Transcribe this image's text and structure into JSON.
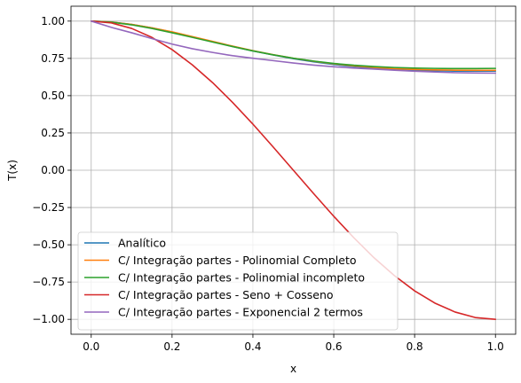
{
  "chart_data": {
    "type": "line",
    "title": "",
    "xlabel": "x",
    "ylabel": "T(x)",
    "xlim": [
      -0.05,
      1.05
    ],
    "ylim": [
      -1.1,
      1.1
    ],
    "grid": true,
    "legend_position": "lower-left",
    "x_ticks": [
      0.0,
      0.2,
      0.4,
      0.6,
      0.8,
      1.0
    ],
    "x_tick_labels": [
      "0.0",
      "0.2",
      "0.4",
      "0.6",
      "0.8",
      "1.0"
    ],
    "y_ticks": [
      1.0,
      0.75,
      0.5,
      0.25,
      0.0,
      -0.25,
      -0.5,
      -0.75,
      -1.0
    ],
    "y_tick_labels": [
      "1.00",
      "0.75",
      "0.50",
      "0.25",
      "0.00",
      "−0.25",
      "−0.50",
      "−0.75",
      "−1.00"
    ],
    "x": [
      0.0,
      0.05,
      0.1,
      0.15,
      0.2,
      0.25,
      0.3,
      0.35,
      0.4,
      0.45,
      0.5,
      0.55,
      0.6,
      0.65,
      0.7,
      0.75,
      0.8,
      0.85,
      0.9,
      0.95,
      1.0
    ],
    "series": [
      {
        "name": "Analítico",
        "color": "#1f77b4",
        "values": [
          1.0,
          0.994,
          0.978,
          0.955,
          0.927,
          0.895,
          0.862,
          0.83,
          0.8,
          0.773,
          0.748,
          0.727,
          0.709,
          0.695,
          0.684,
          0.676,
          0.671,
          0.667,
          0.665,
          0.665,
          0.665
        ]
      },
      {
        "name": "C/ Integração partes - Polinomial Completo",
        "color": "#ff7f0e",
        "values": [
          1.0,
          0.994,
          0.978,
          0.955,
          0.928,
          0.896,
          0.864,
          0.832,
          0.802,
          0.775,
          0.751,
          0.731,
          0.714,
          0.7,
          0.689,
          0.681,
          0.676,
          0.673,
          0.671,
          0.67,
          0.67
        ]
      },
      {
        "name": "C/ Integração partes - Polinomial incompleto",
        "color": "#2ca02c",
        "values": [
          1.0,
          0.993,
          0.975,
          0.951,
          0.922,
          0.891,
          0.86,
          0.829,
          0.8,
          0.774,
          0.751,
          0.732,
          0.716,
          0.704,
          0.695,
          0.689,
          0.685,
          0.683,
          0.682,
          0.682,
          0.683
        ]
      },
      {
        "name": "C/ Integração partes - Seno + Cosseno",
        "color": "#d62728",
        "values": [
          1.0,
          0.988,
          0.951,
          0.891,
          0.809,
          0.707,
          0.588,
          0.454,
          0.309,
          0.156,
          0.0,
          -0.156,
          -0.309,
          -0.454,
          -0.588,
          -0.707,
          -0.809,
          -0.891,
          -0.951,
          -0.988,
          -1.0
        ]
      },
      {
        "name": "C/ Integração partes - Exponencial 2 termos",
        "color": "#9467bd",
        "values": [
          1.0,
          0.958,
          0.922,
          0.883,
          0.846,
          0.815,
          0.79,
          0.768,
          0.751,
          0.735,
          0.719,
          0.705,
          0.694,
          0.685,
          0.678,
          0.671,
          0.664,
          0.659,
          0.654,
          0.652,
          0.651
        ]
      }
    ]
  }
}
